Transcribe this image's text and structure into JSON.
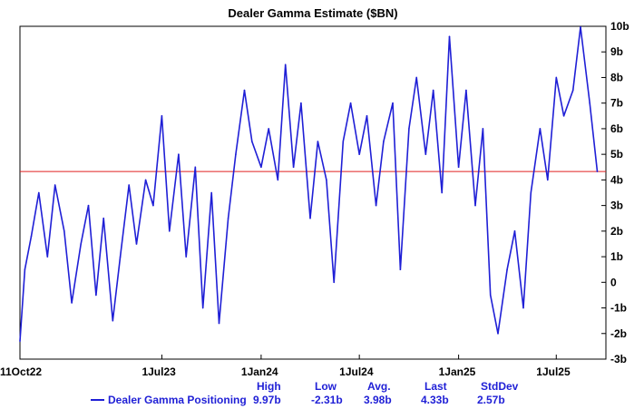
{
  "chart_data": {
    "type": "line",
    "title": "Dealer Gamma Estimate ($BN)",
    "y_ticks": [
      "10b",
      "9b",
      "8b",
      "7b",
      "6b",
      "5b",
      "4b",
      "3b",
      "2b",
      "1b",
      "0",
      "-1b",
      "-2b",
      "-3b"
    ],
    "x_ticks": [
      "11Oct22",
      "1Jul23",
      "1Jan24",
      "1Jul24",
      "1Jan25",
      "1Jul25"
    ],
    "ylim": [
      -3,
      10
    ],
    "xlim": [
      "2022-10-11",
      "2025-10-01"
    ],
    "grid": false,
    "reference_line": {
      "value": 4.33,
      "color": "#e02020"
    },
    "series": [
      {
        "name": "Dealer Gamma Positioning",
        "color": "#1f1fd6",
        "x": [
          "2022-10-11",
          "2022-10-20",
          "2022-11-01",
          "2022-11-15",
          "2022-12-01",
          "2022-12-15",
          "2023-01-01",
          "2023-01-15",
          "2023-02-01",
          "2023-02-15",
          "2023-03-01",
          "2023-03-15",
          "2023-04-01",
          "2023-04-15",
          "2023-05-01",
          "2023-05-15",
          "2023-06-01",
          "2023-06-15",
          "2023-07-01",
          "2023-07-15",
          "2023-08-01",
          "2023-08-15",
          "2023-09-01",
          "2023-09-15",
          "2023-10-01",
          "2023-10-15",
          "2023-11-01",
          "2023-11-15",
          "2023-12-01",
          "2023-12-15",
          "2024-01-01",
          "2024-01-15",
          "2024-02-01",
          "2024-02-15",
          "2024-03-01",
          "2024-03-15",
          "2024-04-01",
          "2024-04-15",
          "2024-05-01",
          "2024-05-15",
          "2024-06-01",
          "2024-06-15",
          "2024-07-01",
          "2024-07-15",
          "2024-08-01",
          "2024-08-15",
          "2024-09-01",
          "2024-09-15",
          "2024-10-01",
          "2024-10-15",
          "2024-11-01",
          "2024-11-15",
          "2024-12-01",
          "2024-12-15",
          "2025-01-01",
          "2025-01-15",
          "2025-02-01",
          "2025-02-15",
          "2025-03-01",
          "2025-03-15",
          "2025-04-01",
          "2025-04-15",
          "2025-05-01",
          "2025-05-15",
          "2025-06-01",
          "2025-06-15",
          "2025-07-01",
          "2025-07-15",
          "2025-08-01",
          "2025-08-15",
          "2025-09-01",
          "2025-09-15"
        ],
        "values": [
          -2.3,
          0.5,
          1.8,
          3.5,
          1.0,
          3.8,
          2.0,
          -0.8,
          1.5,
          3.0,
          -0.5,
          2.5,
          -1.5,
          1.0,
          3.8,
          1.5,
          4.0,
          3.0,
          6.5,
          2.0,
          5.0,
          1.0,
          4.5,
          -1.0,
          3.5,
          -1.6,
          2.5,
          5.0,
          7.5,
          5.5,
          4.5,
          6.0,
          4.0,
          8.5,
          4.5,
          7.0,
          2.5,
          5.5,
          4.0,
          0.0,
          5.5,
          7.0,
          5.0,
          6.5,
          3.0,
          5.5,
          7.0,
          0.5,
          6.0,
          8.0,
          5.0,
          7.5,
          3.5,
          9.6,
          4.5,
          7.5,
          3.0,
          6.0,
          -0.5,
          -2.0,
          0.5,
          2.0,
          -1.0,
          3.5,
          6.0,
          4.0,
          8.0,
          6.5,
          7.5,
          9.97,
          7.0,
          4.33
        ]
      }
    ],
    "legend": {
      "label": "Dealer Gamma Positioning",
      "stats": [
        {
          "name": "High",
          "value": "9.97b"
        },
        {
          "name": "Low",
          "value": "-2.31b"
        },
        {
          "name": "Avg.",
          "value": "3.98b"
        },
        {
          "name": "Last",
          "value": "4.33b"
        },
        {
          "name": "StdDev",
          "value": "2.57b"
        }
      ]
    }
  }
}
